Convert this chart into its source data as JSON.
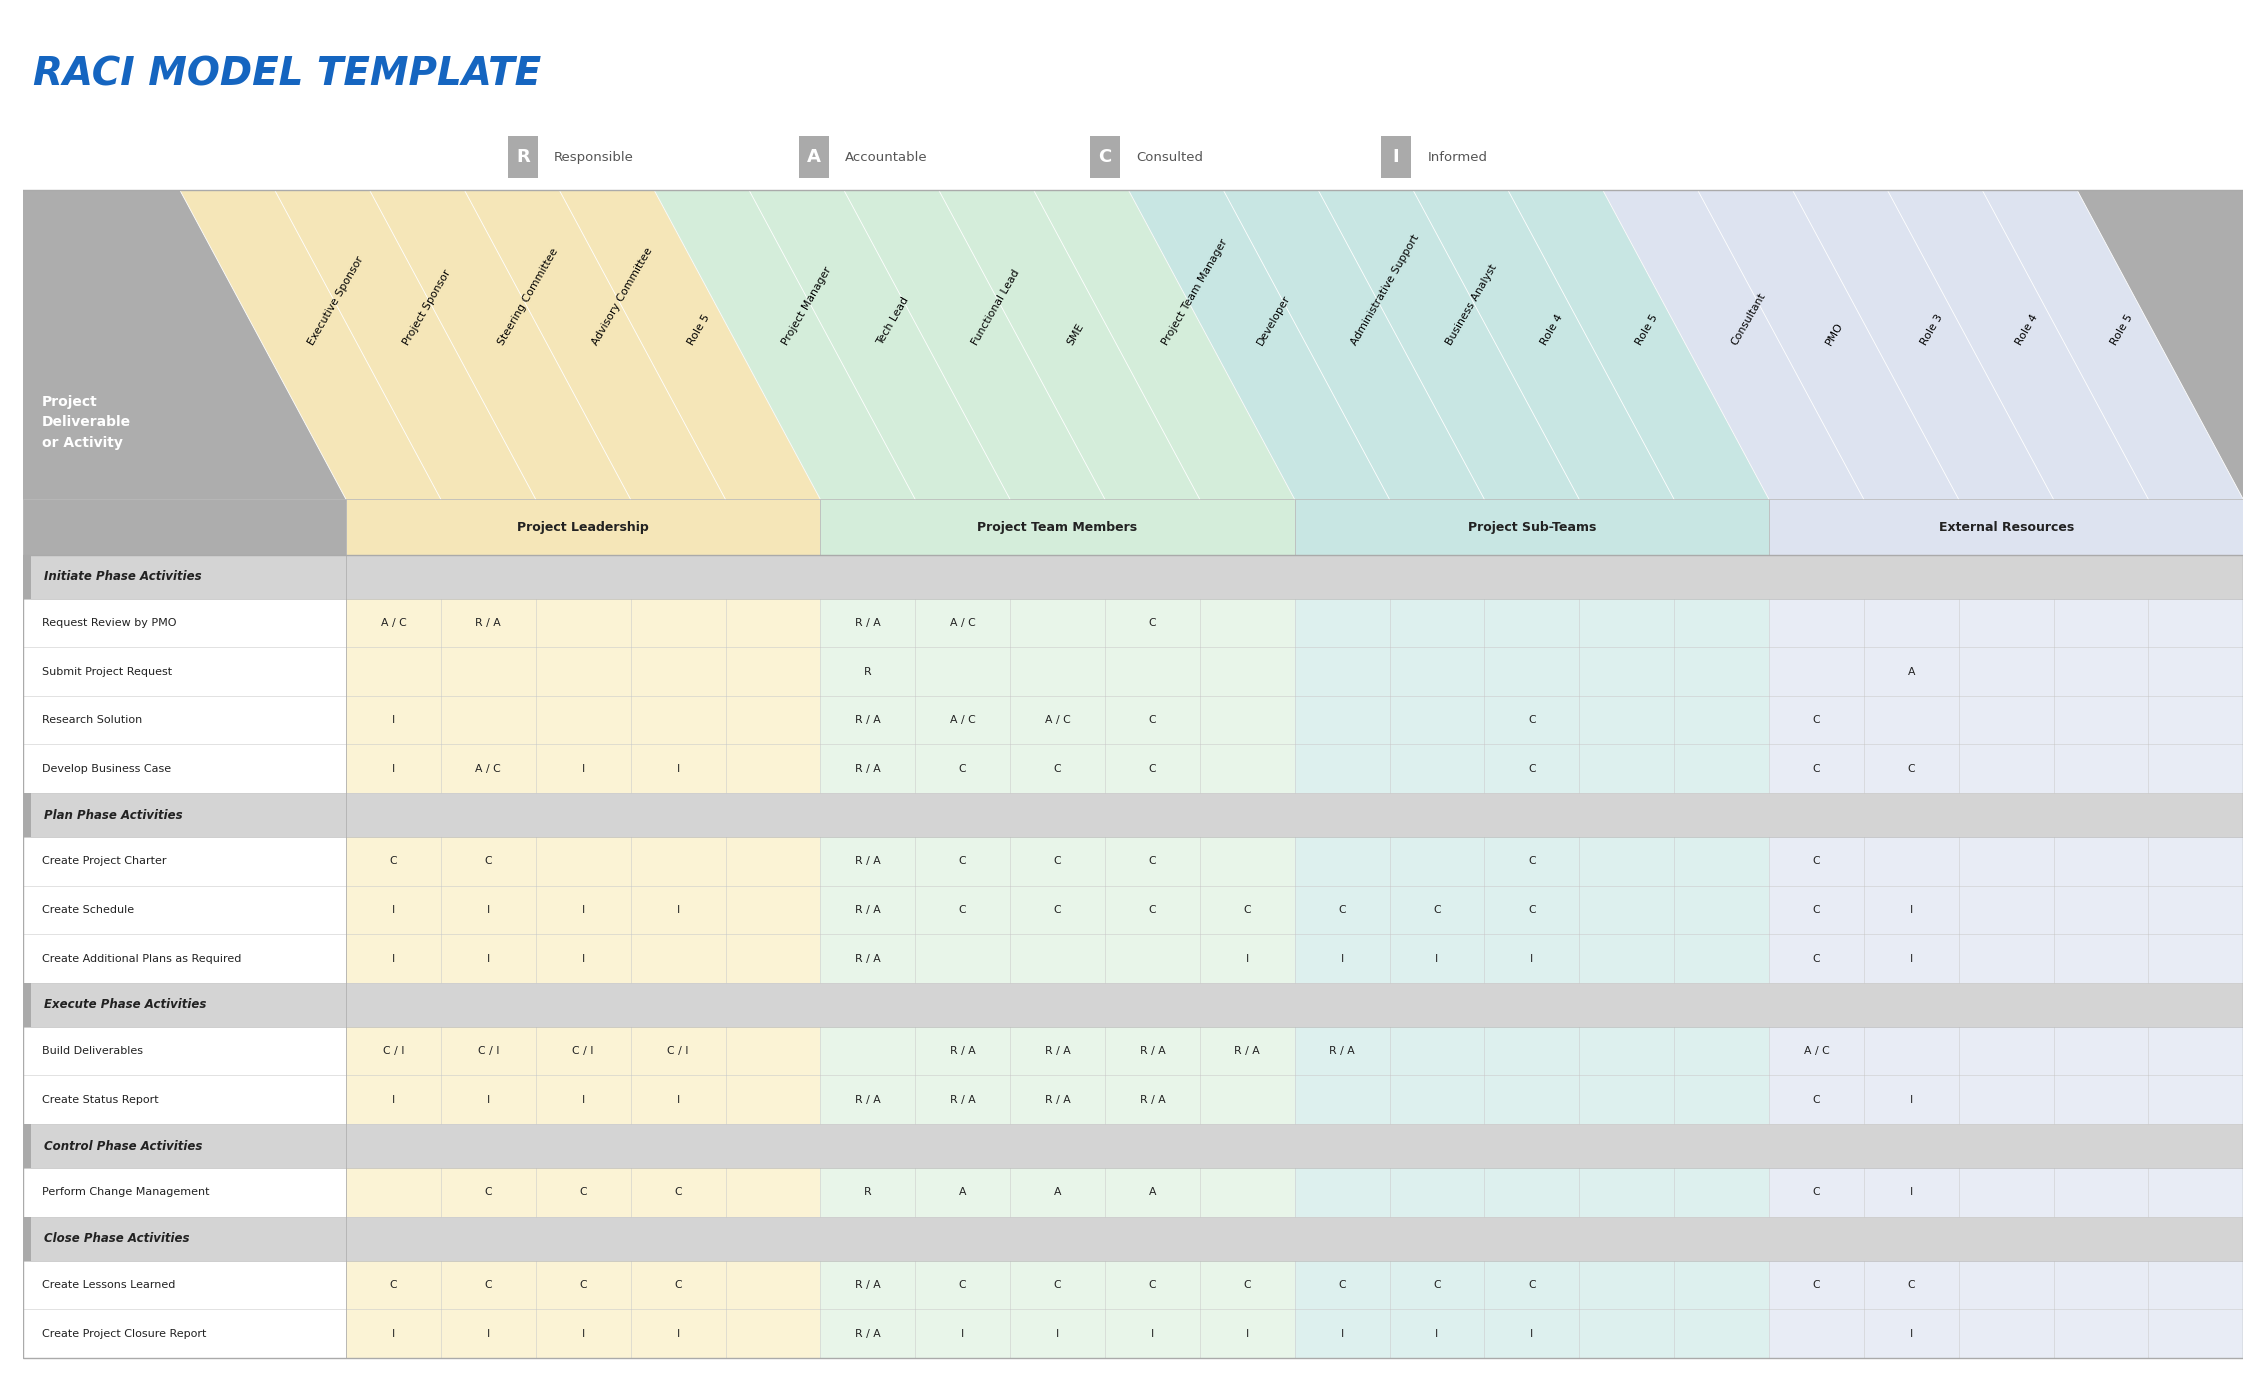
{
  "title": "RACI MODEL TEMPLATE",
  "title_color": "#1565C0",
  "legend_items": [
    {
      "letter": "R",
      "label": "Responsible"
    },
    {
      "letter": "A",
      "label": "Accountable"
    },
    {
      "letter": "C",
      "label": "Consulted"
    },
    {
      "letter": "I",
      "label": "Informed"
    }
  ],
  "col_groups": [
    {
      "name": "Project Leadership",
      "start": 0,
      "end": 4,
      "color": "#F5E6B8",
      "header_color": "#F5E6B8"
    },
    {
      "name": "Project Team Members",
      "start": 5,
      "end": 9,
      "color": "#D4EDDA",
      "header_color": "#D4EDDA"
    },
    {
      "name": "Project Sub-Teams",
      "start": 10,
      "end": 14,
      "color": "#C8E6E3",
      "header_color": "#C8E6E3"
    },
    {
      "name": "External Resources",
      "start": 15,
      "end": 19,
      "color": "#DDE3F0",
      "header_color": "#DDE3F0"
    }
  ],
  "columns": [
    "Executive Sponsor",
    "Project Sponsor",
    "Steering Committee",
    "Advisory Committee",
    "Role 5",
    "Project Manager",
    "Tech Lead",
    "Functional Lead",
    "SME",
    "Project Team Manager",
    "Developer",
    "Administrative Support",
    "Business Analyst",
    "Role 4",
    "Role 5",
    "Consultant",
    "PMO",
    "Role 3",
    "Role 4",
    "Role 5"
  ],
  "col_bg_colors": [
    "#FBF3D5",
    "#FBF3D5",
    "#FBF3D5",
    "#FBF3D5",
    "#FBF3D5",
    "#E8F5E9",
    "#E8F5E9",
    "#E8F5E9",
    "#E8F5E9",
    "#E8F5E9",
    "#DDF0EE",
    "#DDF0EE",
    "#DDF0EE",
    "#DDF0EE",
    "#DDF0EE",
    "#E8ECF5",
    "#E8ECF5",
    "#E8ECF5",
    "#E8ECF5",
    "#E8ECF5"
  ],
  "header_gray": "#AAAAAA",
  "section_bg": "#C8C8C8",
  "rows": [
    {
      "label": "Initiate Phase Activities",
      "is_section": true,
      "cells": [
        "",
        "",
        "",
        "",
        "",
        "",
        "",
        "",
        "",
        "",
        "",
        "",
        "",
        "",
        "",
        "",
        "",
        "",
        "",
        ""
      ]
    },
    {
      "label": "Request Review by PMO",
      "is_section": false,
      "cells": [
        "A / C",
        "R / A",
        "",
        "",
        "",
        "R / A",
        "A / C",
        "",
        "C",
        "",
        "",
        "",
        "",
        "",
        "",
        "",
        "",
        "",
        "",
        ""
      ]
    },
    {
      "label": "Submit Project Request",
      "is_section": false,
      "cells": [
        "",
        "",
        "",
        "",
        "",
        "R",
        "",
        "",
        "",
        "",
        "",
        "",
        "",
        "",
        "",
        "",
        "A",
        "",
        "",
        ""
      ]
    },
    {
      "label": "Research Solution",
      "is_section": false,
      "cells": [
        "I",
        "",
        "",
        "",
        "",
        "R / A",
        "A / C",
        "A / C",
        "C",
        "",
        "",
        "",
        "C",
        "",
        "",
        "C",
        "",
        "",
        "",
        ""
      ]
    },
    {
      "label": "Develop Business Case",
      "is_section": false,
      "cells": [
        "I",
        "A / C",
        "I",
        "I",
        "",
        "R / A",
        "C",
        "C",
        "C",
        "",
        "",
        "",
        "C",
        "",
        "",
        "C",
        "C",
        "",
        "",
        ""
      ]
    },
    {
      "label": "Plan Phase Activities",
      "is_section": true,
      "cells": [
        "",
        "",
        "",
        "",
        "",
        "",
        "",
        "",
        "",
        "",
        "",
        "",
        "",
        "",
        "",
        "",
        "",
        "",
        "",
        ""
      ]
    },
    {
      "label": "Create Project Charter",
      "is_section": false,
      "cells": [
        "C",
        "C",
        "",
        "",
        "",
        "R / A",
        "C",
        "C",
        "C",
        "",
        "",
        "",
        "C",
        "",
        "",
        "C",
        "",
        "",
        "",
        ""
      ]
    },
    {
      "label": "Create Schedule",
      "is_section": false,
      "cells": [
        "I",
        "I",
        "I",
        "I",
        "",
        "R / A",
        "C",
        "C",
        "C",
        "C",
        "C",
        "C",
        "C",
        "",
        "",
        "C",
        "I",
        "",
        "",
        ""
      ]
    },
    {
      "label": "Create Additional Plans as Required",
      "is_section": false,
      "cells": [
        "I",
        "I",
        "I",
        "",
        "",
        "R / A",
        "",
        "",
        "",
        "I",
        "I",
        "I",
        "I",
        "",
        "",
        "C",
        "I",
        "",
        "",
        ""
      ]
    },
    {
      "label": "Execute Phase Activities",
      "is_section": true,
      "cells": [
        "",
        "",
        "",
        "",
        "",
        "",
        "",
        "",
        "",
        "",
        "",
        "",
        "",
        "",
        "",
        "",
        "",
        "",
        "",
        ""
      ]
    },
    {
      "label": "Build Deliverables",
      "is_section": false,
      "cells": [
        "C / I",
        "C / I",
        "C / I",
        "C / I",
        "",
        "",
        "R / A",
        "R / A",
        "R / A",
        "R / A",
        "R / A",
        "",
        "",
        "",
        "",
        "A / C",
        "",
        "",
        "",
        ""
      ]
    },
    {
      "label": "Create Status Report",
      "is_section": false,
      "cells": [
        "I",
        "I",
        "I",
        "I",
        "",
        "R / A",
        "R / A",
        "R / A",
        "R / A",
        "",
        "",
        "",
        "",
        "",
        "",
        "C",
        "I",
        "",
        "",
        ""
      ]
    },
    {
      "label": "Control Phase Activities",
      "is_section": true,
      "cells": [
        "",
        "",
        "",
        "",
        "",
        "",
        "",
        "",
        "",
        "",
        "",
        "",
        "",
        "",
        "",
        "",
        "",
        "",
        "",
        ""
      ]
    },
    {
      "label": "Perform Change Management",
      "is_section": false,
      "cells": [
        "",
        "C",
        "C",
        "C",
        "",
        "R",
        "A",
        "A",
        "A",
        "",
        "",
        "",
        "",
        "",
        "",
        "C",
        "I",
        "",
        "",
        ""
      ]
    },
    {
      "label": "Close Phase Activities",
      "is_section": true,
      "cells": [
        "",
        "",
        "",
        "",
        "",
        "",
        "",
        "",
        "",
        "",
        "",
        "",
        "",
        "",
        "",
        "",
        "",
        "",
        "",
        ""
      ]
    },
    {
      "label": "Create Lessons Learned",
      "is_section": false,
      "cells": [
        "C",
        "C",
        "C",
        "C",
        "",
        "R / A",
        "C",
        "C",
        "C",
        "C",
        "C",
        "C",
        "C",
        "",
        "",
        "C",
        "C",
        "",
        "",
        ""
      ]
    },
    {
      "label": "Create Project Closure Report",
      "is_section": false,
      "cells": [
        "I",
        "I",
        "I",
        "I",
        "",
        "R / A",
        "I",
        "I",
        "I",
        "I",
        "I",
        "I",
        "I",
        "",
        "",
        "",
        "I",
        "",
        "",
        ""
      ]
    }
  ]
}
